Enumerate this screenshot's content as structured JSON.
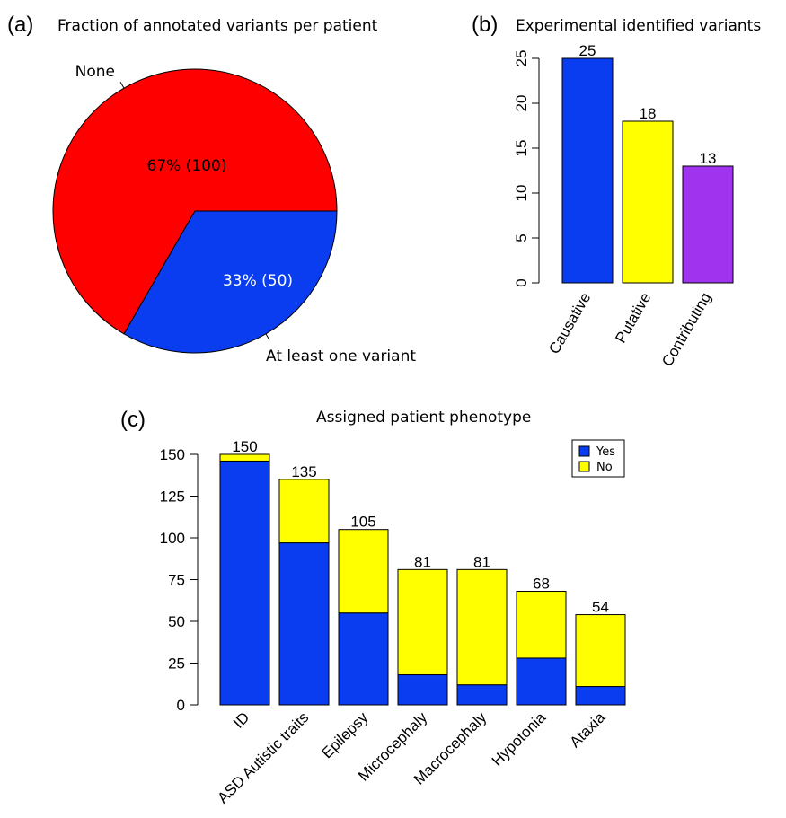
{
  "chart_data": [
    {
      "panel": "(a)",
      "type": "pie",
      "title": "Fraction of annotated variants per patient",
      "slices": [
        {
          "name": "None",
          "value": 100,
          "label": "67% (100)",
          "color": "#ff0000"
        },
        {
          "name": "At least one variant",
          "value": 50,
          "label": "33% (50)",
          "color": "#0a3cf0"
        }
      ]
    },
    {
      "panel": "(b)",
      "type": "bar",
      "title": "Experimental identified variants",
      "categories": [
        "Causative",
        "Putative",
        "Contributing"
      ],
      "values": [
        25,
        18,
        13
      ],
      "colors": [
        "#0a3cf0",
        "#ffff00",
        "#a033ee"
      ],
      "ylim": [
        0,
        25
      ],
      "yticks": [
        0,
        5,
        10,
        15,
        20,
        25
      ],
      "xlabel": "",
      "ylabel": ""
    },
    {
      "panel": "(c)",
      "type": "bar",
      "stacked": true,
      "title": "Assigned patient phenotype",
      "categories": [
        "ID",
        "ASD Autistic traits",
        "Epilepsy",
        "Microcephaly",
        "Macrocephaly",
        "Hypotonia",
        "Ataxia"
      ],
      "series": [
        {
          "name": "Yes",
          "color": "#0a3cf0",
          "values": [
            146,
            97,
            55,
            18,
            12,
            28,
            11
          ]
        },
        {
          "name": "No",
          "color": "#ffff00",
          "values": [
            4,
            38,
            50,
            63,
            69,
            40,
            43
          ]
        }
      ],
      "totals": [
        150,
        135,
        105,
        81,
        81,
        68,
        54
      ],
      "ylim": [
        0,
        150
      ],
      "yticks": [
        0,
        25,
        50,
        75,
        100,
        125,
        150
      ],
      "legend_position": "top-right",
      "xlabel": "",
      "ylabel": ""
    }
  ]
}
